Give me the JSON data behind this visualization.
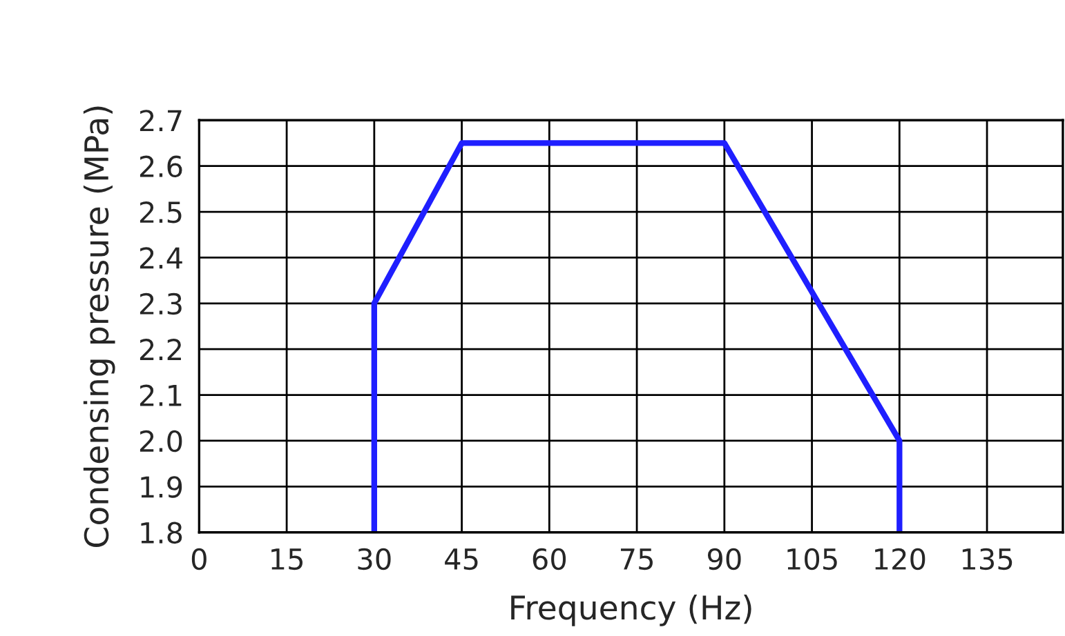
{
  "chart_data": {
    "type": "line",
    "xlabel": "Frequency (Hz)",
    "ylabel": "Condensing pressure (MPa)",
    "x": [
      30,
      30,
      45,
      90,
      120,
      120
    ],
    "series": [
      {
        "color": "#1f1fff",
        "values": [
          1.8,
          2.3,
          2.65,
          2.65,
          2.0,
          1.8
        ]
      }
    ],
    "xlim": [
      0,
      148
    ],
    "xticks": [
      0,
      15,
      30,
      45,
      60,
      75,
      90,
      105,
      120,
      135
    ],
    "ylim": [
      1.8,
      2.7
    ],
    "yticks": [
      {
        "value": 1.8,
        "label": "1.8"
      },
      {
        "value": 1.9,
        "label": "1.9"
      },
      {
        "value": 2.0,
        "label": "2.0"
      },
      {
        "value": 2.1,
        "label": "2.1"
      },
      {
        "value": 2.2,
        "label": "2.2"
      },
      {
        "value": 2.3,
        "label": "2.3"
      },
      {
        "value": 2.4,
        "label": "2.4"
      },
      {
        "value": 2.5,
        "label": "2.5"
      },
      {
        "value": 2.6,
        "label": "2.6"
      },
      {
        "value": 2.7,
        "label": "2.7"
      }
    ],
    "grid": true,
    "marker": "none",
    "line_style": "solid"
  }
}
